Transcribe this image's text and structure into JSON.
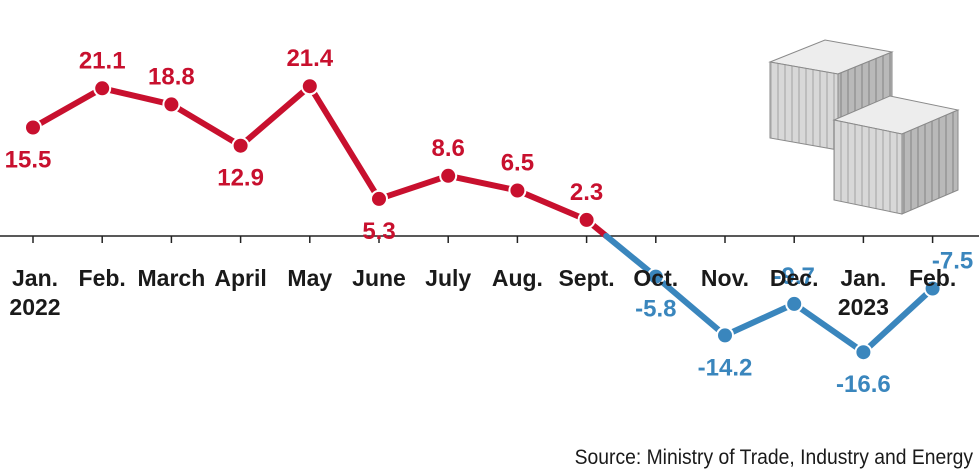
{
  "colors": {
    "positive": "#c8102e",
    "negative": "#3a86bd",
    "axis": "#222222",
    "text": "#1a1a1a"
  },
  "chart_data": {
    "type": "line",
    "categories": [
      [
        "Jan.",
        "2022"
      ],
      [
        "Feb."
      ],
      [
        "March"
      ],
      [
        "April"
      ],
      [
        "May"
      ],
      [
        "June"
      ],
      [
        "July"
      ],
      [
        "Aug."
      ],
      [
        "Sept."
      ],
      [
        "Oct."
      ],
      [
        "Nov."
      ],
      [
        "Dec."
      ],
      [
        "Jan.",
        "2023"
      ],
      [
        "Feb."
      ]
    ],
    "values": [
      15.5,
      21.1,
      18.8,
      12.9,
      21.4,
      5.3,
      8.6,
      6.5,
      2.3,
      -5.8,
      -14.2,
      -9.7,
      -16.6,
      -7.5
    ],
    "value_labels": [
      "15.5",
      "21.1",
      "18.8",
      "12.9",
      "21.4",
      "5.3",
      "8.6",
      "6.5",
      "2.3",
      "-5.8",
      "-14.2",
      "-9.7",
      "-16.6",
      "-7.5"
    ],
    "ylim": [
      -16.6,
      21.4
    ],
    "zero_line": true,
    "positive_color": "#c8102e",
    "negative_color": "#3a86bd",
    "illustration": "shipping-containers-icon"
  },
  "source": "Source: Ministry of Trade, Industry and Energy"
}
